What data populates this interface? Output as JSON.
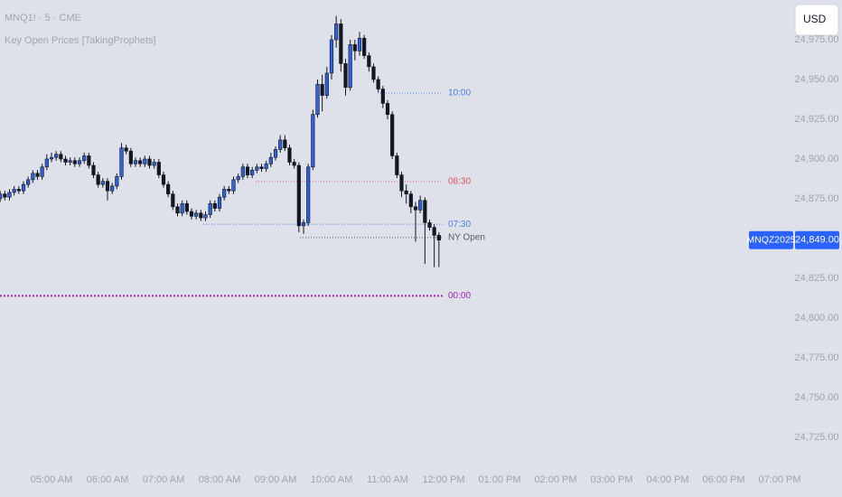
{
  "chart_data": {
    "type": "candlestick",
    "title": "MNQ1! · 5 · CME",
    "subtitle": "Key Open Prices [TakingProphets]",
    "currency": "USD",
    "colors": {
      "up": "#2f62d8",
      "down": "#131722"
    },
    "x": [
      "04:05",
      "04:10",
      "04:15",
      "04:20",
      "04:25",
      "04:30",
      "04:35",
      "04:40",
      "04:45",
      "04:50",
      "04:55",
      "05:00",
      "05:05",
      "05:10",
      "05:15",
      "05:20",
      "05:25",
      "05:30",
      "05:35",
      "05:40",
      "05:45",
      "05:50",
      "05:55",
      "06:00",
      "06:05",
      "06:10",
      "06:15",
      "06:20",
      "06:25",
      "06:30",
      "06:35",
      "06:40",
      "06:45",
      "06:50",
      "06:55",
      "07:00",
      "07:05",
      "07:10",
      "07:15",
      "07:20",
      "07:25",
      "07:30",
      "07:35",
      "07:40",
      "07:45",
      "07:50",
      "07:55",
      "08:00",
      "08:05",
      "08:10",
      "08:15",
      "08:20",
      "08:25",
      "08:30",
      "08:35",
      "08:40",
      "08:45",
      "08:50",
      "08:55",
      "09:00",
      "09:05",
      "09:10",
      "09:15",
      "09:20",
      "09:25",
      "09:30",
      "09:35",
      "09:40",
      "09:45",
      "09:50",
      "09:55",
      "10:00",
      "10:05",
      "10:10",
      "10:15",
      "10:20",
      "10:25",
      "10:30",
      "10:35",
      "10:40",
      "10:45",
      "10:50",
      "10:55",
      "11:00",
      "11:05",
      "11:10",
      "11:15",
      "11:20",
      "11:25",
      "11:30",
      "11:35",
      "11:40",
      "11:45",
      "11:50",
      "11:55"
    ],
    "open": [
      24875,
      24878,
      24876,
      24879,
      24881,
      24880,
      24884,
      24887,
      24891,
      24889,
      24895,
      24900,
      24901,
      24903,
      24900,
      24898,
      24899,
      24897,
      24899,
      24902,
      24896,
      24890,
      24884,
      24886,
      24880,
      24883,
      24889,
      24907,
      24905,
      24897,
      24899,
      24897,
      24900,
      24896,
      24898,
      24890,
      24884,
      24878,
      24870,
      24866,
      24872,
      24867,
      24864,
      24866,
      24863,
      24865,
      24872,
      24869,
      24876,
      24881,
      24880,
      24887,
      24889,
      24895,
      24890,
      24893,
      24895,
      24894,
      24897,
      24901,
      24906,
      24912,
      24907,
      24898,
      24896,
      24858,
      24860,
      24895,
      24928,
      24947,
      24940,
      24954,
      24975,
      24985,
      24960,
      24945,
      24972,
      24968,
      24976,
      24965,
      24958,
      24950,
      24944,
      24935,
      24928,
      24902,
      24890,
      24880,
      24878,
      24870,
      24868,
      24874,
      24860,
      24857,
      24852
    ],
    "high": [
      24880,
      24880,
      24881,
      24883,
      24883,
      24886,
      24889,
      24893,
      24893,
      24897,
      24903,
      24904,
      24905,
      24905,
      24902,
      24901,
      24901,
      24901,
      24904,
      24904,
      24898,
      24892,
      24888,
      24888,
      24885,
      24891,
      24910,
      24909,
      24907,
      24901,
      24901,
      24902,
      24902,
      24900,
      24900,
      24892,
      24886,
      24880,
      24872,
      24874,
      24874,
      24869,
      24868,
      24868,
      24867,
      24874,
      24874,
      24878,
      24883,
      24883,
      24889,
      24891,
      24897,
      24897,
      24895,
      24897,
      24897,
      24899,
      24904,
      24908,
      24915,
      24915,
      24909,
      24900,
      24898,
      24862,
      24897,
      24931,
      24950,
      24953,
      24958,
      24978,
      24990,
      24988,
      24963,
      24975,
      24975,
      24980,
      24978,
      24967,
      24960,
      24952,
      24946,
      24937,
      24930,
      24904,
      24892,
      24884,
      24880,
      24873,
      24877,
      24876,
      24862,
      24859,
      24854
    ],
    "low": [
      24873,
      24874,
      24874,
      24877,
      24878,
      24878,
      24882,
      24885,
      24887,
      24887,
      24893,
      24898,
      24899,
      24898,
      24896,
      24896,
      24895,
      24895,
      24897,
      24894,
      24888,
      24882,
      24882,
      24874,
      24878,
      24881,
      24887,
      24903,
      24895,
      24895,
      24895,
      24895,
      24894,
      24894,
      24888,
      24882,
      24876,
      24868,
      24864,
      24864,
      24865,
      24862,
      24862,
      24861,
      24861,
      24863,
      24867,
      24867,
      24874,
      24878,
      24878,
      24885,
      24887,
      24888,
      24888,
      24891,
      24892,
      24892,
      24895,
      24899,
      24904,
      24905,
      24896,
      24894,
      24854,
      24853,
      24858,
      24893,
      24926,
      24930,
      24938,
      24950,
      24970,
      24955,
      24940,
      24943,
      24962,
      24965,
      24963,
      24955,
      24948,
      24942,
      24932,
      24925,
      24900,
      24888,
      24876,
      24872,
      24866,
      24848,
      24866,
      24834,
      24855,
      24832,
      24832
    ],
    "close": [
      24878,
      24876,
      24879,
      24881,
      24880,
      24884,
      24887,
      24891,
      24889,
      24895,
      24900,
      24901,
      24903,
      24900,
      24898,
      24899,
      24897,
      24899,
      24902,
      24896,
      24890,
      24884,
      24886,
      24880,
      24883,
      24889,
      24907,
      24905,
      24897,
      24899,
      24897,
      24900,
      24896,
      24898,
      24890,
      24884,
      24878,
      24870,
      24866,
      24872,
      24867,
      24864,
      24866,
      24863,
      24865,
      24872,
      24869,
      24876,
      24881,
      24880,
      24887,
      24889,
      24895,
      24890,
      24893,
      24895,
      24894,
      24897,
      24901,
      24906,
      24912,
      24907,
      24898,
      24896,
      24858,
      24860,
      24895,
      24928,
      24947,
      24940,
      24954,
      24975,
      24985,
      24960,
      24945,
      24972,
      24968,
      24976,
      24965,
      24958,
      24950,
      24944,
      24935,
      24928,
      24902,
      24890,
      24880,
      24878,
      24870,
      24868,
      24874,
      24860,
      24857,
      24852,
      24849
    ],
    "ylim": [
      24710.2,
      25000
    ],
    "yticks": [
      {
        "value": 24725,
        "label": "24,725.00"
      },
      {
        "value": 24750,
        "label": "24,750.00"
      },
      {
        "value": 24775,
        "label": "24,775.00"
      },
      {
        "value": 24800,
        "label": "24,800.00"
      },
      {
        "value": 24825,
        "label": "24,825.00"
      },
      {
        "value": 24875,
        "label": "24,875.00"
      },
      {
        "value": 24900,
        "label": "24,900.00"
      },
      {
        "value": 24925,
        "label": "24,925.00"
      },
      {
        "value": 24950,
        "label": "24,950.00"
      },
      {
        "value": 24975,
        "label": "24,975.00"
      }
    ],
    "xticks": [
      {
        "value": "05:00",
        "label": "05:00 AM"
      },
      {
        "value": "06:00",
        "label": "06:00 AM"
      },
      {
        "value": "07:00",
        "label": "07:00 AM"
      },
      {
        "value": "08:00",
        "label": "08:00 AM"
      },
      {
        "value": "09:00",
        "label": "09:00 AM"
      },
      {
        "value": "10:00",
        "label": "10:00 AM"
      },
      {
        "value": "11:00",
        "label": "11:00 AM"
      },
      {
        "value": "12:00",
        "label": "12:00 PM"
      },
      {
        "value": "13:00",
        "label": "01:00 PM"
      },
      {
        "value": "14:00",
        "label": "02:00 PM"
      },
      {
        "value": "15:00",
        "label": "03:00 PM"
      },
      {
        "value": "16:00",
        "label": "04:00 PM"
      },
      {
        "value": "18:00",
        "label": "06:00 PM"
      },
      {
        "value": "19:00",
        "label": "07:00 PM"
      }
    ],
    "levels": [
      {
        "label": "10:00",
        "value": 24941.5,
        "color": "#4a7fe0"
      },
      {
        "label": "08:30",
        "value": 24885.8,
        "color": "#e0506a"
      },
      {
        "label": "07:30",
        "value": 24859,
        "color": "#4a7fe0"
      },
      {
        "label": "NY Open",
        "value": 24850.6,
        "color": "#555a66"
      },
      {
        "label": "00:00",
        "value": 24814,
        "color": "#9c27b0"
      }
    ],
    "last_price": {
      "name": "MNQZ2025",
      "value": 24849,
      "label": "24,849.00"
    }
  }
}
